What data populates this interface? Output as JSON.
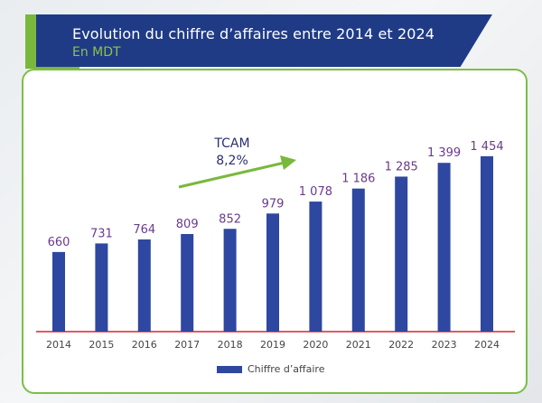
{
  "header": {
    "title": "Evolution du chiffre d’affaires entre 2014 et 2024",
    "subtitle": "En MDT"
  },
  "colors": {
    "bar": "#2e47a0",
    "value_label": "#6b3a8c",
    "baseline": "#d9232d",
    "header_bg": "#1f3b86",
    "accent_green": "#79b83c"
  },
  "annotation": {
    "line1": "TCAM",
    "line2": "8,2%"
  },
  "chart_data": {
    "type": "bar",
    "title": "Evolution du chiffre d’affaires entre 2014 et 2024",
    "subtitle": "En MDT",
    "categories": [
      "2014",
      "2015",
      "2016",
      "2017",
      "2018",
      "2019",
      "2020",
      "2021",
      "2022",
      "2023",
      "2024"
    ],
    "series": [
      {
        "name": "Chiffre d’affaire",
        "values": [
          660,
          731,
          764,
          809,
          852,
          979,
          1078,
          1186,
          1285,
          1399,
          1454
        ],
        "labels": [
          "660",
          "731",
          "764",
          "809",
          "852",
          "979",
          "1 078",
          "1 186",
          "1 285",
          "1 399",
          "1 454"
        ]
      }
    ],
    "ylim": [
      0,
      1600
    ],
    "grid": false,
    "legend_position": "bottom"
  }
}
